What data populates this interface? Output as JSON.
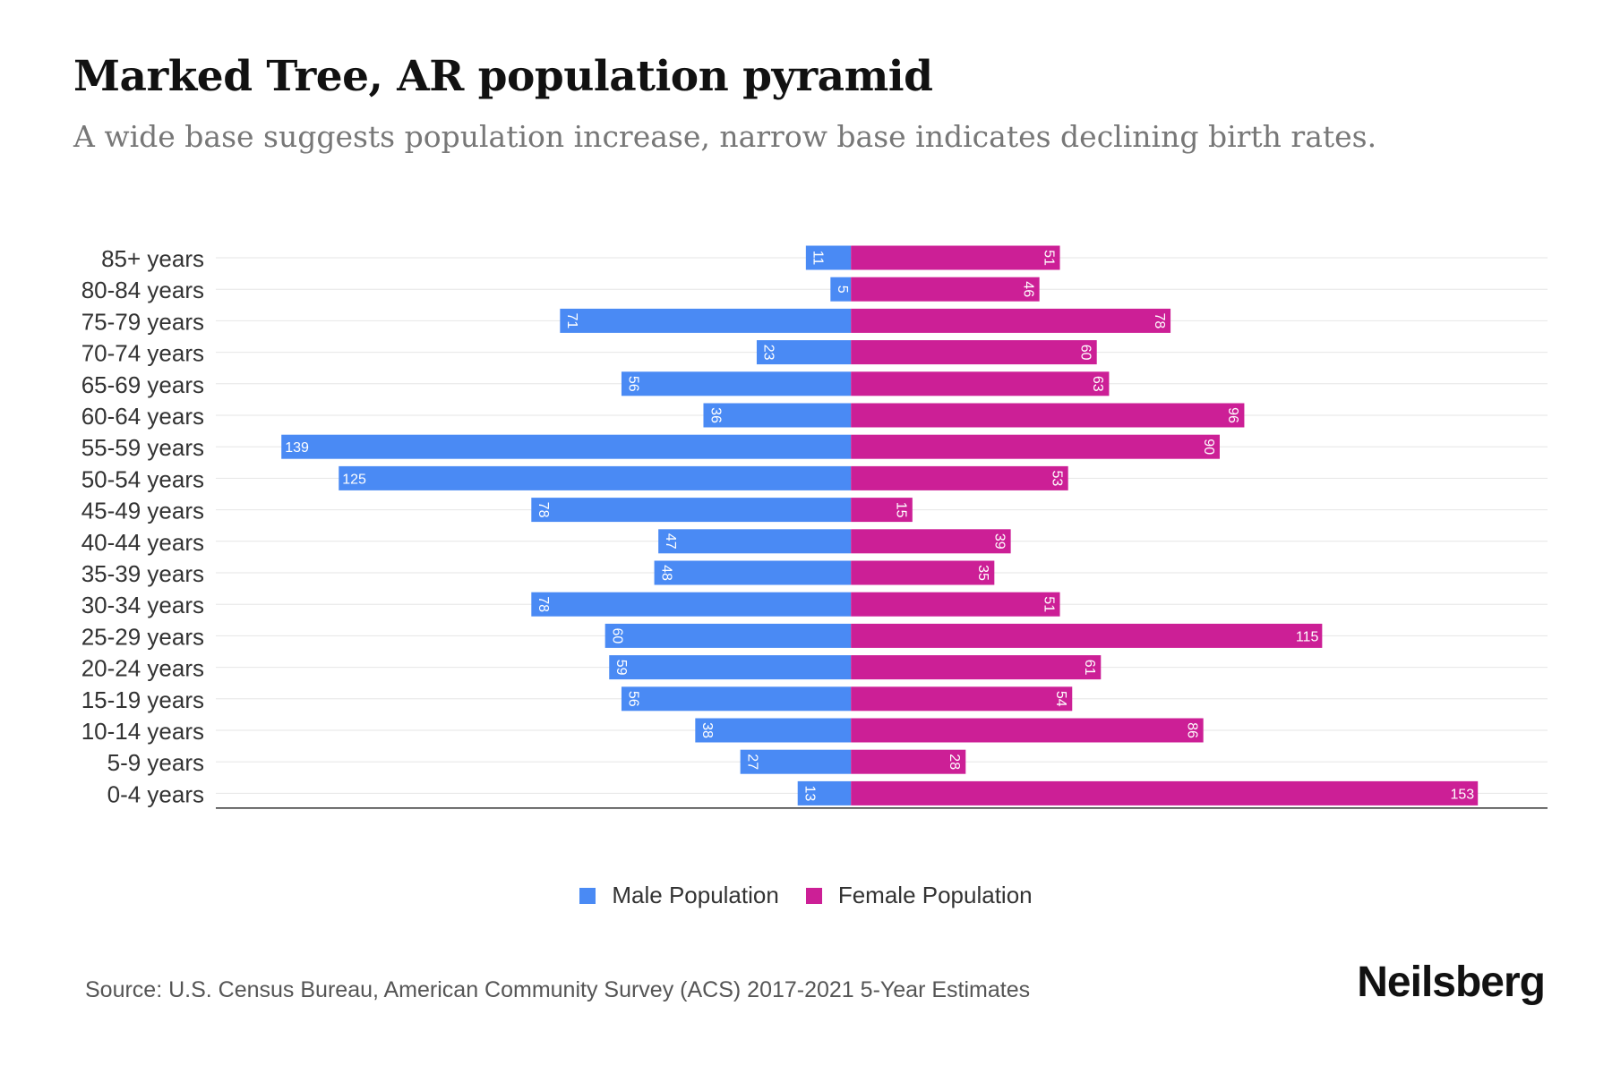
{
  "title": "Marked Tree, AR population pyramid",
  "subtitle": "A wide base suggests population increase, narrow base indicates declining birth rates.",
  "source": "Source: U.S. Census Bureau, American Community Survey (ACS) 2017-2021 5-Year Estimates",
  "brand": "Neilsberg",
  "colors": {
    "male": "#4a8af4",
    "female": "#cc1f96",
    "gridline": "#e6e6e6",
    "axis": "#333333"
  },
  "chart_data": {
    "type": "bar",
    "orientation": "horizontal-diverging",
    "categories": [
      "85+ years",
      "80-84 years",
      "75-79 years",
      "70-74 years",
      "65-69 years",
      "60-64 years",
      "55-59 years",
      "50-54 years",
      "45-49 years",
      "40-44 years",
      "35-39 years",
      "30-34 years",
      "25-29 years",
      "20-24 years",
      "15-19 years",
      "10-14 years",
      "5-9 years",
      "0-4 years"
    ],
    "series": [
      {
        "name": "Male Population",
        "color": "#4a8af4",
        "values": [
          11,
          5,
          71,
          23,
          56,
          36,
          139,
          125,
          78,
          47,
          48,
          78,
          60,
          59,
          56,
          38,
          27,
          13
        ]
      },
      {
        "name": "Female Population",
        "color": "#cc1f96",
        "values": [
          51,
          46,
          78,
          60,
          63,
          96,
          90,
          53,
          15,
          39,
          35,
          51,
          115,
          61,
          54,
          86,
          28,
          153
        ]
      }
    ],
    "xlim": [
      -155,
      170
    ],
    "legend_position": "bottom-center",
    "grid": true
  }
}
